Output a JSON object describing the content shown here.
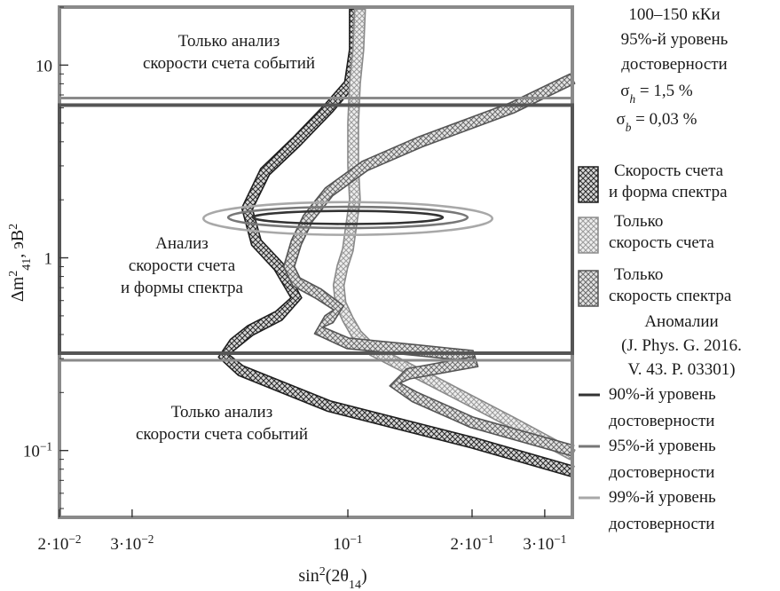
{
  "chart_data": {
    "type": "contour",
    "xlabel": "sin²(2θ₁₄)",
    "ylabel": "Δm²₄₁, эВ²",
    "xscale": "log",
    "yscale": "log",
    "xlim": [
      0.02,
      0.35
    ],
    "ylim": [
      0.045,
      20
    ],
    "x_ticks": [
      {
        "value": 0.02,
        "label": "2·10⁻²"
      },
      {
        "value": 0.03,
        "label": "3·10⁻²"
      },
      {
        "value": 0.1,
        "label": "10⁻¹"
      },
      {
        "value": 0.2,
        "label": "2·10⁻¹"
      },
      {
        "value": 0.3,
        "label": "3·10⁻¹"
      }
    ],
    "y_ticks": [
      {
        "value": 10,
        "label": "10"
      },
      {
        "value": 1,
        "label": "1"
      },
      {
        "value": 0.1,
        "label": "10⁻¹"
      }
    ],
    "regions": [
      {
        "name": "top",
        "label_lines": [
          "Только анализ",
          "скорости счета событий"
        ],
        "y_range": [
          6.2,
          20
        ]
      },
      {
        "name": "middle",
        "label_lines": [
          "Анализ",
          "скорости счета",
          "и формы спектра"
        ],
        "y_range": [
          0.32,
          6.2
        ]
      },
      {
        "name": "bottom",
        "label_lines": [
          "Только анализ",
          "скорости счета событий"
        ],
        "y_range": [
          0.045,
          0.32
        ]
      }
    ],
    "conditions": [
      "100–150 кКи",
      "95%-й уровень",
      "достоверности",
      "σ_h = 1,5 %",
      "σ_b = 0,03 %"
    ],
    "legend_bands": [
      {
        "lines": [
          "Скорость счета",
          "и форма спектра"
        ],
        "style": "dark-hatch"
      },
      {
        "lines": [
          "Только",
          "скорость счета"
        ],
        "style": "light-hatch"
      },
      {
        "lines": [
          "Только",
          "скорость спектра"
        ],
        "style": "mid-hatch"
      }
    ],
    "anomaly_title": [
      "Аномалии",
      "(J. Phys. G. 2016.",
      "V. 43. P. 03301)"
    ],
    "legend_lines": [
      {
        "lines": [
          "90%-й уровень",
          "достоверности"
        ],
        "color": "#333333"
      },
      {
        "lines": [
          "95%-й уровень",
          "достоверности"
        ],
        "color": "#777777"
      },
      {
        "lines": [
          "99%-й уровень",
          "достоверности"
        ],
        "color": "#a8a8a8"
      }
    ],
    "series": [
      {
        "name": "Скорость счета и форма спектра",
        "style": "dark-hatch",
        "x": [
          0.104,
          0.104,
          0.101,
          0.09,
          0.075,
          0.063,
          0.057,
          0.06,
          0.068,
          0.075,
          0.068,
          0.058,
          0.053,
          0.05,
          0.055,
          0.09,
          0.2,
          0.35
        ],
        "y": [
          19.5,
          12,
          8,
          6,
          4,
          2.8,
          1.8,
          1.2,
          0.9,
          0.62,
          0.5,
          0.42,
          0.36,
          0.31,
          0.26,
          0.17,
          0.11,
          0.078
        ]
      },
      {
        "name": "Только скорость счета",
        "style": "light-hatch",
        "x": [
          0.107,
          0.106,
          0.104,
          0.103,
          0.103,
          0.104,
          0.102,
          0.1,
          0.097,
          0.095,
          0.096,
          0.1,
          0.105,
          0.115,
          0.16,
          0.25,
          0.35
        ],
        "y": [
          19.5,
          12,
          8,
          5,
          3,
          2,
          1.5,
          1.1,
          0.9,
          0.72,
          0.58,
          0.48,
          0.4,
          0.33,
          0.23,
          0.14,
          0.095
        ]
      },
      {
        "name": "Только скорость спектра",
        "style": "mid-hatch",
        "x": [
          0.35,
          0.25,
          0.15,
          0.11,
          0.09,
          0.08,
          0.075,
          0.072,
          0.075,
          0.085,
          0.095,
          0.09,
          0.085,
          0.1,
          0.15,
          0.2,
          0.205,
          0.14,
          0.13,
          0.145,
          0.2,
          0.35
        ],
        "y": [
          8.5,
          6,
          4,
          3,
          2.2,
          1.6,
          1.2,
          0.9,
          0.75,
          0.65,
          0.55,
          0.48,
          0.42,
          0.36,
          0.33,
          0.31,
          0.29,
          0.25,
          0.22,
          0.19,
          0.14,
          0.1
        ]
      }
    ],
    "anomaly_contours": [
      {
        "level": "90%",
        "color": "#333333",
        "cx": 0.1,
        "cy": 1.62,
        "rx_dec": 0.23,
        "ry_dec": 0.034
      },
      {
        "level": "95%",
        "color": "#777777",
        "cx": 0.1,
        "cy": 1.62,
        "rx_dec": 0.29,
        "ry_dec": 0.055
      },
      {
        "level": "99%",
        "color": "#a8a8a8",
        "cx": 0.1,
        "cy": 1.6,
        "rx_dec": 0.35,
        "ry_dec": 0.085
      }
    ]
  }
}
